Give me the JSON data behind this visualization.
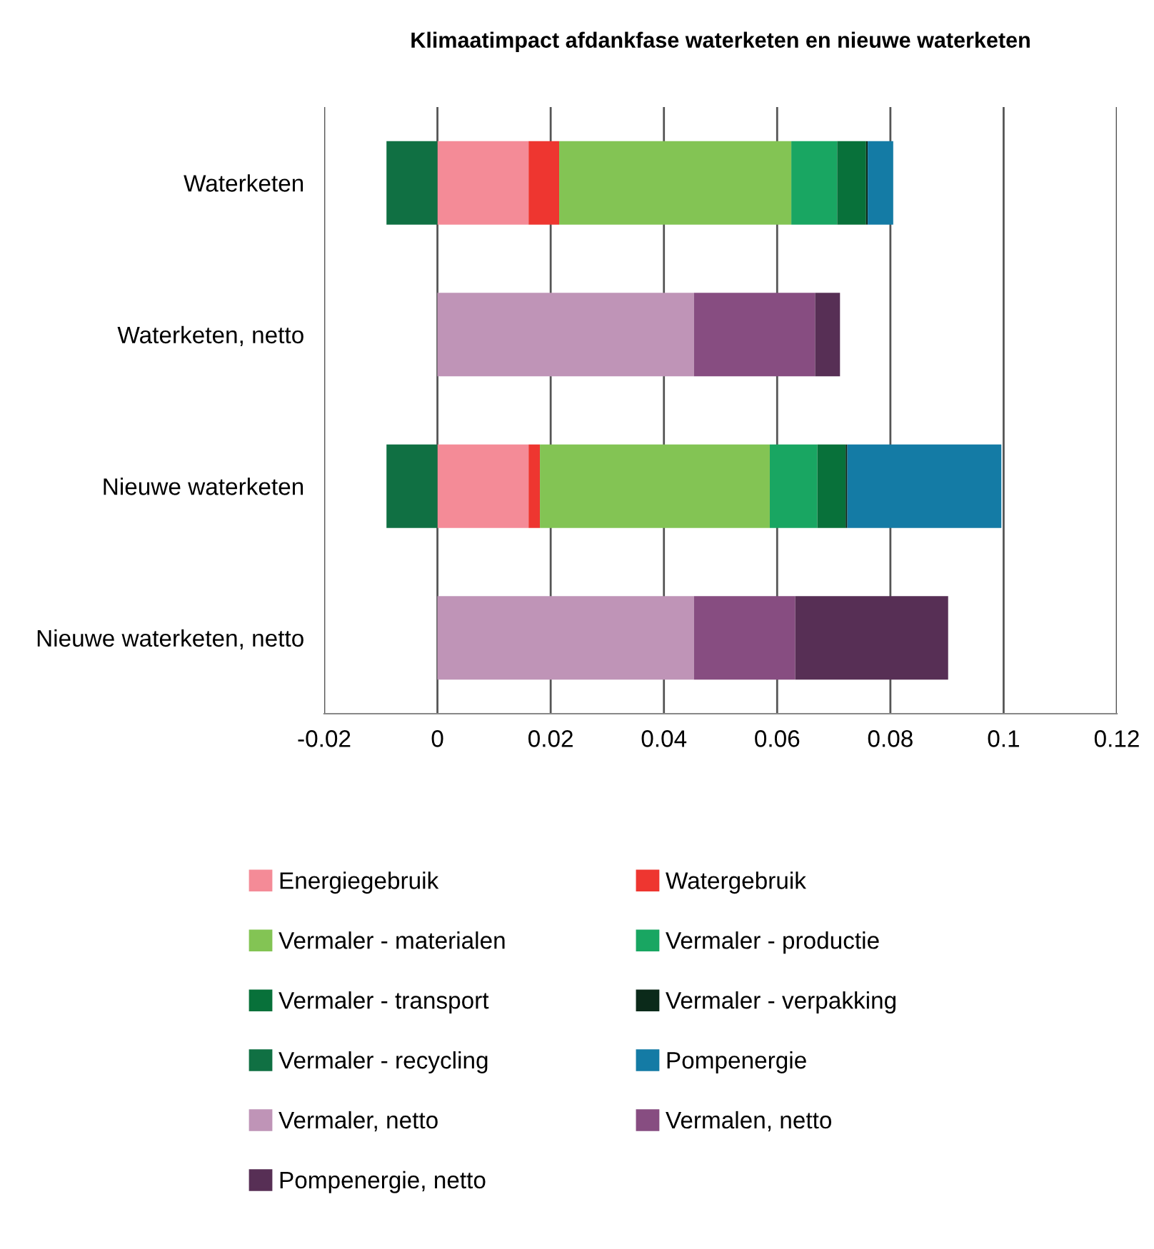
{
  "chart_data": {
    "type": "bar",
    "orientation": "horizontal",
    "stacked": true,
    "title": "Klimaatimpact afdankfase waterketen en nieuwe waterketen",
    "categories": [
      "Waterketen",
      "Waterketen, netto",
      "Nieuwe waterketen",
      "Nieuwe waterketen, netto"
    ],
    "series": [
      {
        "name": "Energiegebruik",
        "color": "#f48b97",
        "values": [
          0.0161,
          null,
          0.0161,
          null
        ]
      },
      {
        "name": "Watergebruik",
        "color": "#ee3630",
        "values": [
          0.0054,
          null,
          0.002,
          null
        ]
      },
      {
        "name": "Vermaler - materialen",
        "color": "#83c454",
        "values": [
          0.041,
          null,
          0.0406,
          null
        ]
      },
      {
        "name": "Vermaler - productie",
        "color": "#19a662",
        "values": [
          0.0081,
          null,
          0.0084,
          null
        ]
      },
      {
        "name": "Vermaler - transport",
        "color": "#08713a",
        "values": [
          0.0051,
          null,
          0.005,
          null
        ]
      },
      {
        "name": "Vermaler - verpakking",
        "color": "#0b2a1a",
        "values": [
          0.0003,
          null,
          0.0003,
          null
        ]
      },
      {
        "name": "Vermaler - recycling",
        "color": "#107043",
        "values": [
          -0.009,
          null,
          -0.009,
          null
        ]
      },
      {
        "name": "Pompenergie",
        "color": "#147ba5",
        "values": [
          0.0045,
          null,
          0.0272,
          null
        ]
      },
      {
        "name": "Vermaler, netto",
        "color": "#bf94b7",
        "values": [
          null,
          0.0453,
          null,
          0.0453
        ]
      },
      {
        "name": "Vermalen, netto",
        "color": "#874d81",
        "values": [
          null,
          0.0214,
          null,
          0.0179
        ]
      },
      {
        "name": "Pompenergie, netto",
        "color": "#572f55",
        "values": [
          null,
          0.0044,
          null,
          0.027
        ]
      }
    ],
    "xlim": [
      -0.02,
      0.12
    ],
    "xticks": [
      -0.02,
      0,
      0.02,
      0.04,
      0.06,
      0.08,
      0.1,
      0.12
    ],
    "grid": "x",
    "legend": "bottom"
  }
}
